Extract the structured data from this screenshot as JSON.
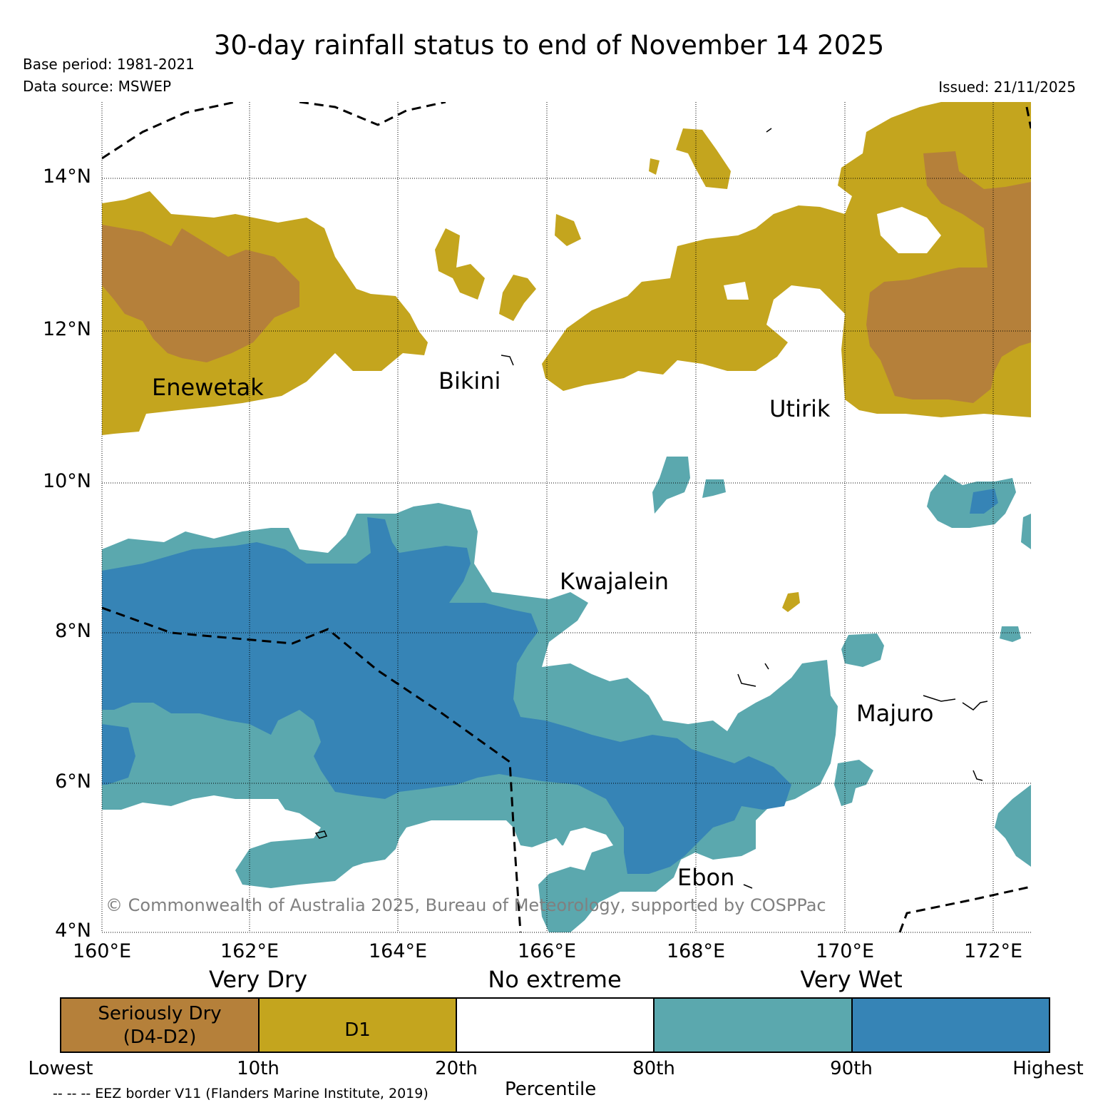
{
  "title": "30-day rainfall status to end of November 14 2025",
  "meta": {
    "base_period": "Base period: 1981-2021",
    "data_source": "Data source: MSWEP",
    "issued": "Issued: 21/11/2025"
  },
  "axes": {
    "latitudes": [
      "14°N",
      "12°N",
      "10°N",
      "8°N",
      "6°N",
      "4°N"
    ],
    "longitudes": [
      "160°E",
      "162°E",
      "164°E",
      "166°E",
      "168°E",
      "170°E",
      "172°E"
    ]
  },
  "places": [
    {
      "id": "enewetak",
      "label": "Enewetak"
    },
    {
      "id": "bikini",
      "label": "Bikini"
    },
    {
      "id": "utirik",
      "label": "Utirik"
    },
    {
      "id": "kwajalein",
      "label": "Kwajalein"
    },
    {
      "id": "majuro",
      "label": "Majuro"
    },
    {
      "id": "ebon",
      "label": "Ebon"
    }
  ],
  "copyright": "© Commonwealth of Australia 2025, Bureau of Meteorology, supported by COSPPac",
  "legend": {
    "categories": [
      "Very Dry",
      "No extreme",
      "Very Wet"
    ],
    "boxes": [
      {
        "line1": "Seriously Dry",
        "line2": "(D4-D2)",
        "color": "#b5803a"
      },
      {
        "line1": "D1",
        "color": "#c4a51e"
      },
      {
        "line1": "",
        "color": "#ffffff"
      },
      {
        "line1": "",
        "color": "#5ba8ae"
      },
      {
        "line1": "",
        "color": "#3684b6"
      }
    ],
    "percentiles": [
      "Lowest",
      "10th",
      "20th",
      "80th",
      "90th",
      "Highest"
    ],
    "axis_title": "Percentile",
    "eez_note": "-- -- -- EEZ border V11 (Flanders Marine Institute, 2019)"
  },
  "colors": {
    "seriously_dry": "#b5803a",
    "d1": "#c4a51e",
    "very_wet": "#5ba8ae",
    "highest": "#3684b6"
  }
}
